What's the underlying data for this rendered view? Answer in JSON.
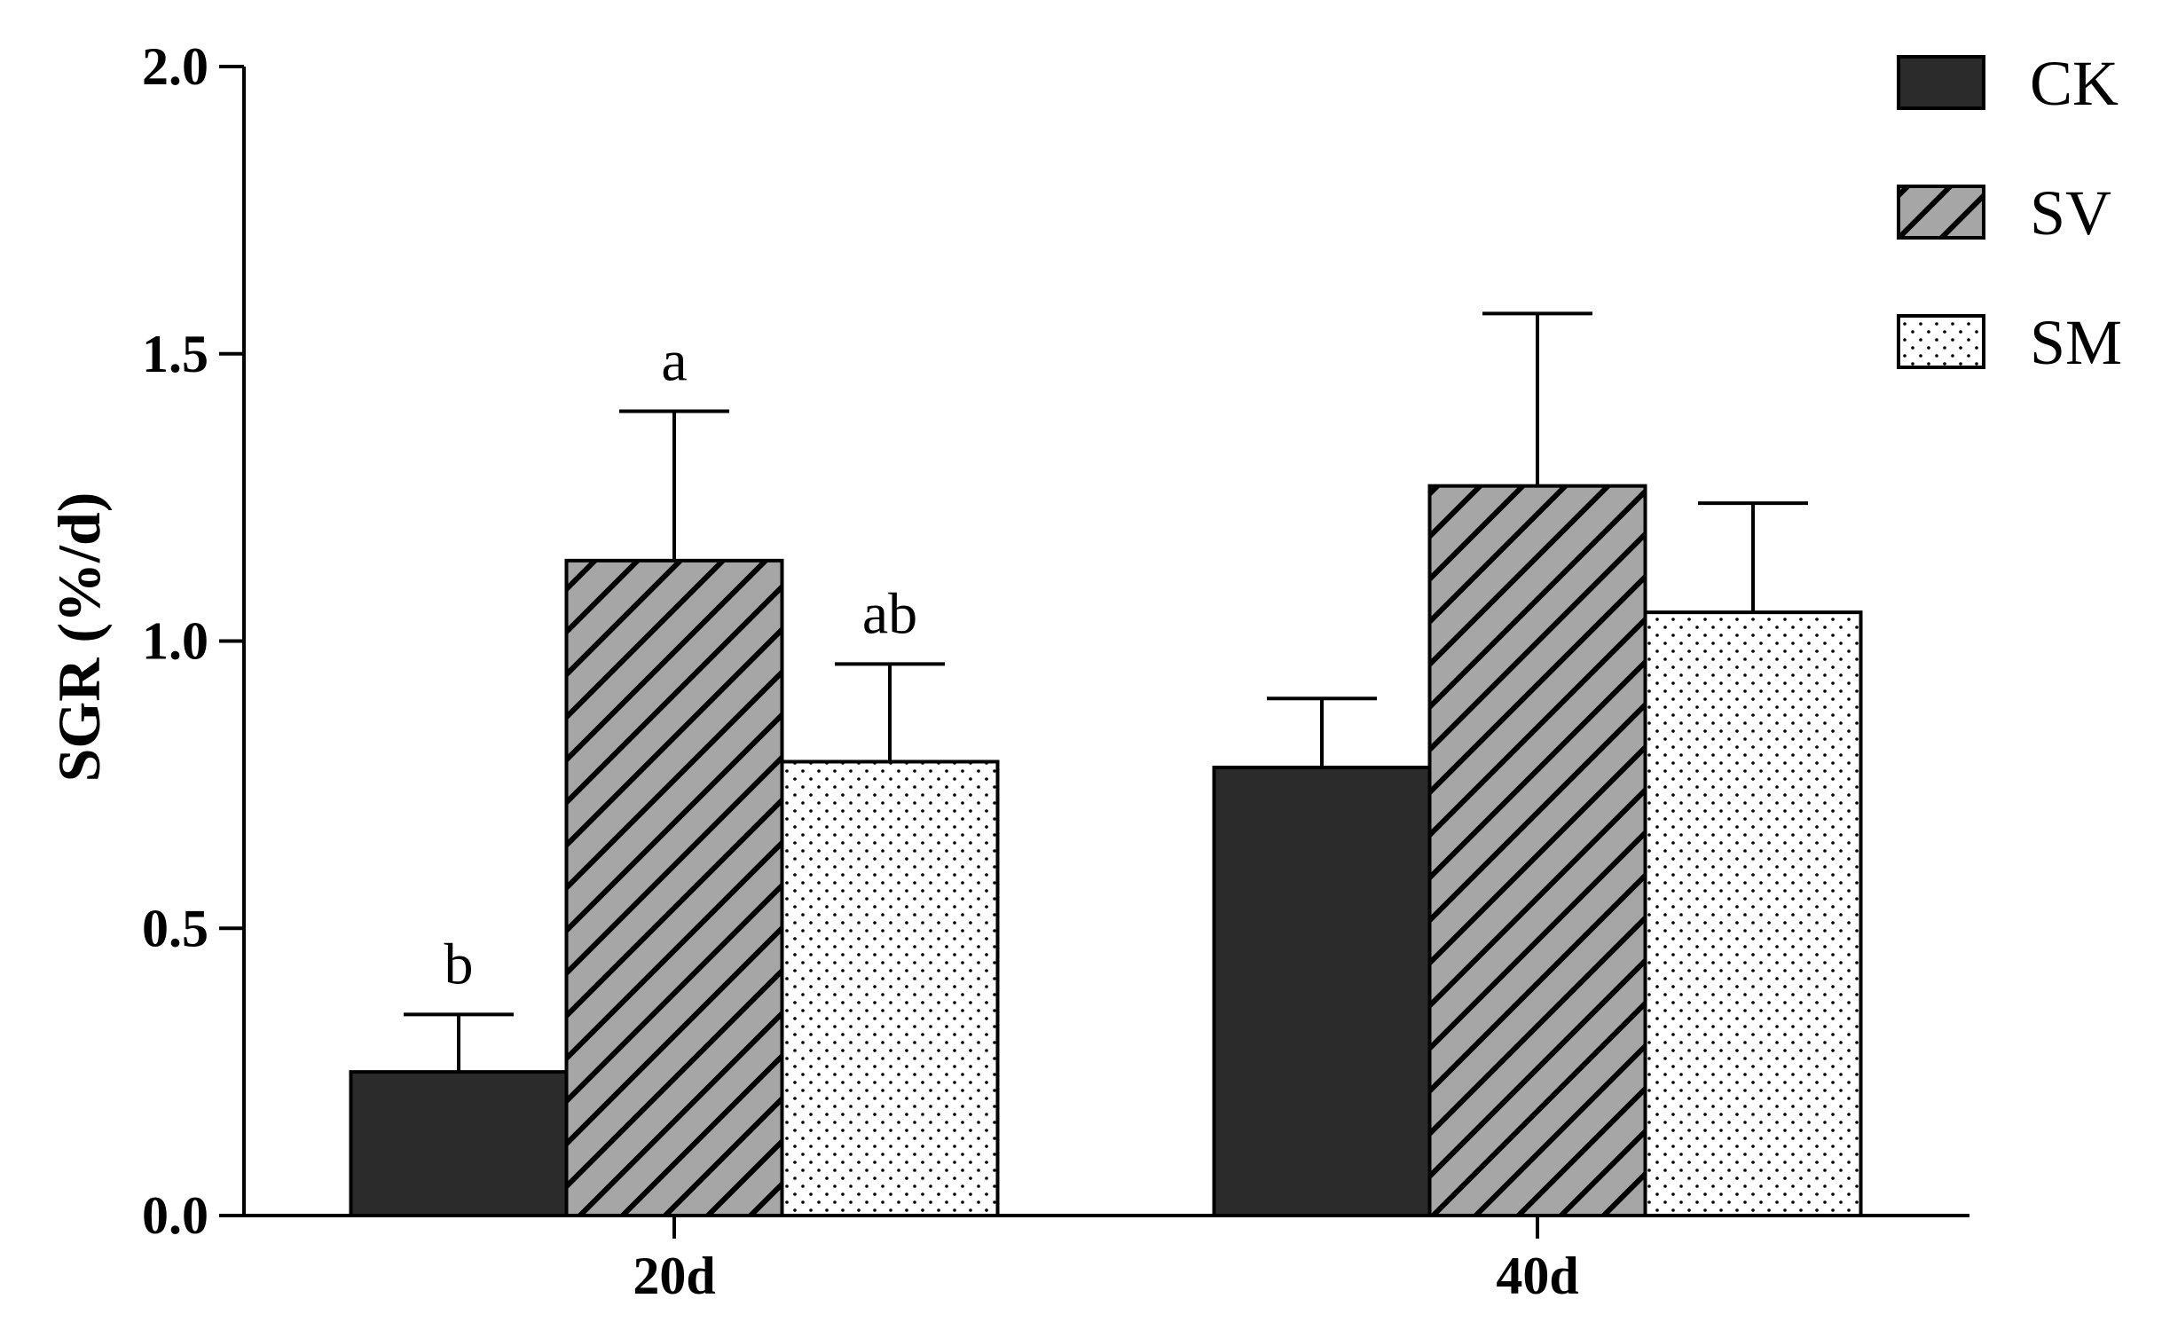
{
  "chart_data": {
    "type": "bar",
    "title": "",
    "xlabel": "",
    "ylabel": "SGR (%/d)",
    "ylim": [
      0,
      2.0
    ],
    "yticks": [
      "0.0",
      "0.5",
      "1.0",
      "1.5",
      "2.0"
    ],
    "ytick_values": [
      0,
      0.5,
      1.0,
      1.5,
      2.0
    ],
    "categories": [
      "20d",
      "40d"
    ],
    "series": [
      {
        "name": "CK",
        "values": [
          0.25,
          0.78
        ],
        "errors": [
          0.1,
          0.12
        ],
        "pattern": "solid",
        "color": "#2b2b2b",
        "letters": [
          "b",
          ""
        ]
      },
      {
        "name": "SV",
        "values": [
          1.14,
          1.27
        ],
        "errors": [
          0.26,
          0.3
        ],
        "pattern": "hatch",
        "color": "#a6a6a6",
        "letters": [
          "a",
          ""
        ]
      },
      {
        "name": "SM",
        "values": [
          0.79,
          1.05
        ],
        "errors": [
          0.17,
          0.19
        ],
        "pattern": "dots",
        "color": "#ffffff",
        "letters": [
          "ab",
          ""
        ]
      }
    ],
    "legend_position": "top-right",
    "grid": false
  }
}
